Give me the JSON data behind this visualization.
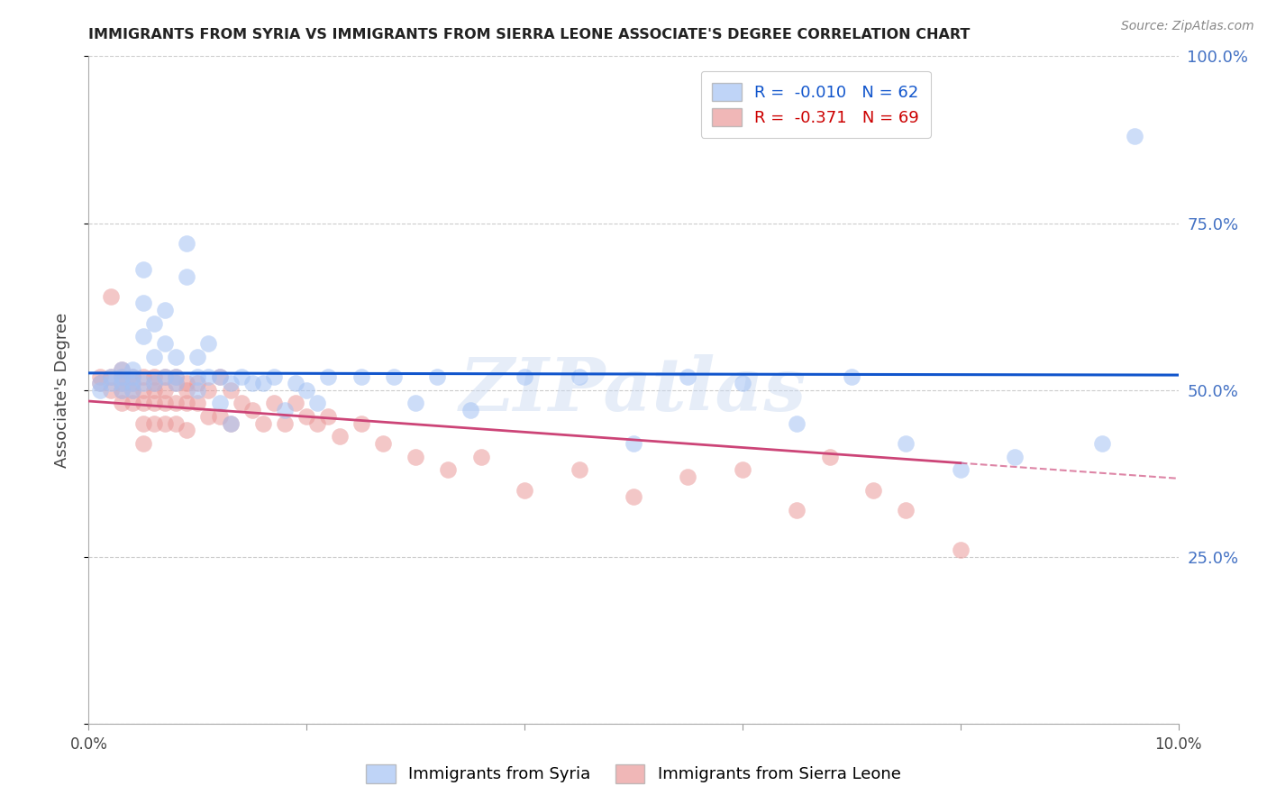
{
  "title": "IMMIGRANTS FROM SYRIA VS IMMIGRANTS FROM SIERRA LEONE ASSOCIATE'S DEGREE CORRELATION CHART",
  "source": "Source: ZipAtlas.com",
  "ylabel": "Associate's Degree",
  "syria_R": -0.01,
  "syria_N": 62,
  "leone_R": -0.371,
  "leone_N": 69,
  "xmin": 0.0,
  "xmax": 0.1,
  "ymin": 0.0,
  "ymax": 1.0,
  "yticks": [
    0.0,
    0.25,
    0.5,
    0.75,
    1.0
  ],
  "ytick_labels": [
    "",
    "25.0%",
    "50.0%",
    "75.0%",
    "100.0%"
  ],
  "xticks": [
    0.0,
    0.02,
    0.04,
    0.06,
    0.08,
    0.1
  ],
  "xtick_labels": [
    "0.0%",
    "",
    "",
    "",
    "",
    "10.0%"
  ],
  "syria_color": "#a4c2f4",
  "leone_color": "#ea9999",
  "syria_line_color": "#1155cc",
  "leone_line_color": "#cc4477",
  "watermark": "ZIPatlas",
  "syria_x": [
    0.001,
    0.001,
    0.002,
    0.002,
    0.003,
    0.003,
    0.003,
    0.003,
    0.004,
    0.004,
    0.004,
    0.004,
    0.005,
    0.005,
    0.005,
    0.005,
    0.006,
    0.006,
    0.006,
    0.007,
    0.007,
    0.007,
    0.008,
    0.008,
    0.008,
    0.009,
    0.009,
    0.01,
    0.01,
    0.01,
    0.011,
    0.011,
    0.012,
    0.012,
    0.013,
    0.013,
    0.014,
    0.015,
    0.016,
    0.017,
    0.018,
    0.019,
    0.02,
    0.021,
    0.022,
    0.025,
    0.028,
    0.03,
    0.032,
    0.035,
    0.04,
    0.045,
    0.05,
    0.055,
    0.06,
    0.065,
    0.07,
    0.075,
    0.08,
    0.085,
    0.093,
    0.096
  ],
  "syria_y": [
    0.51,
    0.5,
    0.52,
    0.51,
    0.52,
    0.5,
    0.51,
    0.53,
    0.52,
    0.51,
    0.5,
    0.53,
    0.63,
    0.58,
    0.51,
    0.68,
    0.51,
    0.55,
    0.6,
    0.52,
    0.57,
    0.62,
    0.51,
    0.55,
    0.52,
    0.72,
    0.67,
    0.52,
    0.55,
    0.5,
    0.52,
    0.57,
    0.52,
    0.48,
    0.51,
    0.45,
    0.52,
    0.51,
    0.51,
    0.52,
    0.47,
    0.51,
    0.5,
    0.48,
    0.52,
    0.52,
    0.52,
    0.48,
    0.52,
    0.47,
    0.52,
    0.52,
    0.42,
    0.52,
    0.51,
    0.45,
    0.52,
    0.42,
    0.38,
    0.4,
    0.42,
    0.88
  ],
  "leone_x": [
    0.001,
    0.001,
    0.002,
    0.002,
    0.002,
    0.003,
    0.003,
    0.003,
    0.003,
    0.003,
    0.004,
    0.004,
    0.004,
    0.004,
    0.005,
    0.005,
    0.005,
    0.005,
    0.005,
    0.006,
    0.006,
    0.006,
    0.006,
    0.006,
    0.007,
    0.007,
    0.007,
    0.007,
    0.008,
    0.008,
    0.008,
    0.008,
    0.009,
    0.009,
    0.009,
    0.009,
    0.01,
    0.01,
    0.011,
    0.011,
    0.012,
    0.012,
    0.013,
    0.013,
    0.014,
    0.015,
    0.016,
    0.017,
    0.018,
    0.019,
    0.02,
    0.021,
    0.022,
    0.023,
    0.025,
    0.027,
    0.03,
    0.033,
    0.036,
    0.04,
    0.045,
    0.05,
    0.055,
    0.06,
    0.065,
    0.068,
    0.072,
    0.075,
    0.08
  ],
  "leone_y": [
    0.51,
    0.52,
    0.64,
    0.52,
    0.5,
    0.52,
    0.51,
    0.5,
    0.53,
    0.48,
    0.52,
    0.51,
    0.5,
    0.48,
    0.52,
    0.5,
    0.48,
    0.45,
    0.42,
    0.52,
    0.51,
    0.5,
    0.48,
    0.45,
    0.52,
    0.5,
    0.48,
    0.45,
    0.52,
    0.51,
    0.48,
    0.45,
    0.51,
    0.5,
    0.48,
    0.44,
    0.51,
    0.48,
    0.5,
    0.46,
    0.52,
    0.46,
    0.5,
    0.45,
    0.48,
    0.47,
    0.45,
    0.48,
    0.45,
    0.48,
    0.46,
    0.45,
    0.46,
    0.43,
    0.45,
    0.42,
    0.4,
    0.38,
    0.4,
    0.35,
    0.38,
    0.34,
    0.37,
    0.38,
    0.32,
    0.4,
    0.35,
    0.32,
    0.26
  ],
  "background_color": "#ffffff",
  "grid_color": "#cccccc",
  "right_tick_color": "#4472c4",
  "figsize": [
    14.06,
    8.92
  ]
}
